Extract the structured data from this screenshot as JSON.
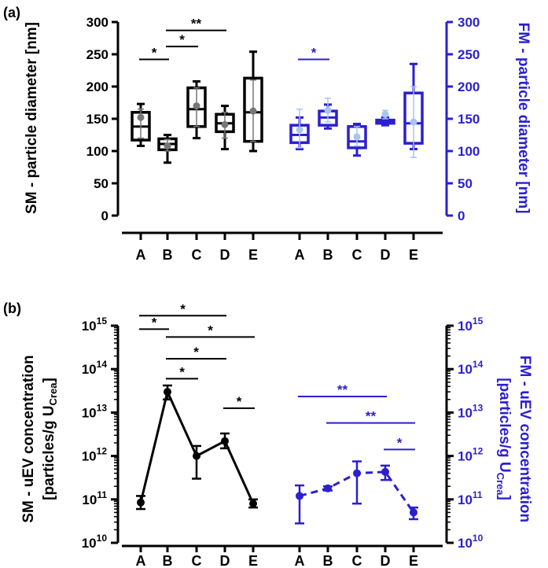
{
  "chart_data": [
    {
      "panel": "(a)",
      "type": "box",
      "colors": {
        "SM": "#000000",
        "FM": "#2b1fcf",
        "FM_mean": "#a9c4ef"
      },
      "SM": {
        "label": "SM - particle diameter [nm]",
        "ylim": [
          0,
          300
        ],
        "yticks": [
          "0",
          "50",
          "100",
          "150",
          "200",
          "250",
          "300"
        ],
        "categories": [
          "A",
          "B",
          "C",
          "D",
          "E"
        ],
        "boxes": [
          {
            "min": 108,
            "q1": 117,
            "median": 138,
            "q3": 160,
            "max": 173,
            "mean": 152,
            "sd_low": 120,
            "sd_high": 165
          },
          {
            "min": 82,
            "q1": 102,
            "median": 111,
            "q3": 119,
            "max": 125,
            "mean": 108,
            "sd_low": 100,
            "sd_high": 118
          },
          {
            "min": 120,
            "q1": 138,
            "median": 165,
            "q3": 198,
            "max": 208,
            "mean": 170,
            "sd_low": 138,
            "sd_high": 198
          },
          {
            "min": 103,
            "q1": 130,
            "median": 143,
            "q3": 157,
            "max": 170,
            "mean": 141,
            "sd_low": 120,
            "sd_high": 160
          },
          {
            "min": 100,
            "q1": 115,
            "median": 160,
            "q3": 213,
            "max": 254,
            "mean": 162,
            "sd_low": 115,
            "sd_high": 210
          }
        ],
        "significance": [
          {
            "from": "A",
            "to": "B",
            "label": "*",
            "y": 242
          },
          {
            "from": "B",
            "to": "C",
            "label": "*",
            "y": 262
          },
          {
            "from": "B",
            "to": "D",
            "label": "**",
            "y": 287
          }
        ]
      },
      "FM": {
        "label": "FM - particle diameter [nm]",
        "ylim": [
          0,
          300
        ],
        "yticks": [
          "0",
          "50",
          "100",
          "150",
          "200",
          "250",
          "300"
        ],
        "categories": [
          "A",
          "B",
          "C",
          "D",
          "E"
        ],
        "boxes": [
          {
            "min": 103,
            "q1": 113,
            "median": 125,
            "q3": 140,
            "max": 152,
            "mean": 133,
            "sd_low": 105,
            "sd_high": 165
          },
          {
            "min": 135,
            "q1": 140,
            "median": 152,
            "q3": 162,
            "max": 172,
            "mean": 163,
            "sd_low": 145,
            "sd_high": 182
          },
          {
            "min": 93,
            "q1": 105,
            "median": 115,
            "q3": 138,
            "max": 142,
            "mean": 122,
            "sd_low": 108,
            "sd_high": 138
          },
          {
            "min": 140,
            "q1": 143,
            "median": 145,
            "q3": 148,
            "max": 152,
            "mean": 157,
            "sd_low": 150,
            "sd_high": 163
          },
          {
            "min": 103,
            "q1": 112,
            "median": 143,
            "q3": 190,
            "max": 235,
            "mean": 145,
            "sd_low": 90,
            "sd_high": 200
          }
        ],
        "significance": [
          {
            "from": "A",
            "to": "B",
            "label": "*",
            "y": 242
          }
        ]
      }
    },
    {
      "panel": "(b)",
      "type": "line",
      "yscale": "log",
      "colors": {
        "SM": "#000000",
        "FM": "#2b1fcf"
      },
      "SM": {
        "label_line1": "SM - uEV concentration",
        "label_line2": "[particles/g U",
        "label_sub": "Crea",
        "label_end": "]",
        "ylim_exp": [
          10,
          15
        ],
        "ytick_base": "10",
        "ytick_exps": [
          "10",
          "11",
          "12",
          "13",
          "14",
          "15"
        ],
        "categories": [
          "A",
          "B",
          "C",
          "D",
          "E"
        ],
        "values": [
          85000000000.0,
          30000000000000.0,
          1000000000000.0,
          2200000000000.0,
          80000000000.0
        ],
        "err_low": [
          60000000000.0,
          20000000000000.0,
          300000000000.0,
          1500000000000.0,
          65000000000.0
        ],
        "err_high": [
          120000000000.0,
          42000000000000.0,
          1700000000000.0,
          3300000000000.0,
          100000000000.0
        ],
        "line_style": "solid",
        "significance": [
          {
            "from": "A",
            "to": "B",
            "label": "*",
            "y_exp": 14.92
          },
          {
            "from": "A",
            "to": "D",
            "label": "*",
            "y_exp": 15.23
          },
          {
            "from": "B",
            "to": "E",
            "label": "*",
            "y_exp": 14.74
          },
          {
            "from": "B",
            "to": "D",
            "label": "*",
            "y_exp": 14.24
          },
          {
            "from": "B",
            "to": "C",
            "label": "*",
            "y_exp": 13.78
          },
          {
            "from": "D",
            "to": "E",
            "label": "*",
            "y_exp": 13.1
          }
        ]
      },
      "FM": {
        "label_line1": "FM - uEV concentration",
        "label_line2": "[particles/g U",
        "label_sub": "Crea",
        "label_end": "]",
        "ylim_exp": [
          10,
          15
        ],
        "ytick_base": "10",
        "ytick_exps": [
          "10",
          "11",
          "12",
          "13",
          "14",
          "15"
        ],
        "categories": [
          "A",
          "B",
          "C",
          "D",
          "E"
        ],
        "values": [
          120000000000.0,
          180000000000.0,
          400000000000.0,
          430000000000.0,
          50000000000.0
        ],
        "err_low": [
          28000000000.0,
          160000000000.0,
          80000000000.0,
          280000000000.0,
          35000000000.0
        ],
        "err_high": [
          210000000000.0,
          200000000000.0,
          750000000000.0,
          600000000000.0,
          65000000000.0
        ],
        "line_style": "dashed",
        "significance": [
          {
            "from": "A",
            "to": "D",
            "label": "**",
            "y_exp": 13.37
          },
          {
            "from": "B",
            "to": "E",
            "label": "**",
            "y_exp": 12.76
          },
          {
            "from": "D",
            "to": "E",
            "label": "*",
            "y_exp": 12.15
          }
        ]
      }
    }
  ]
}
